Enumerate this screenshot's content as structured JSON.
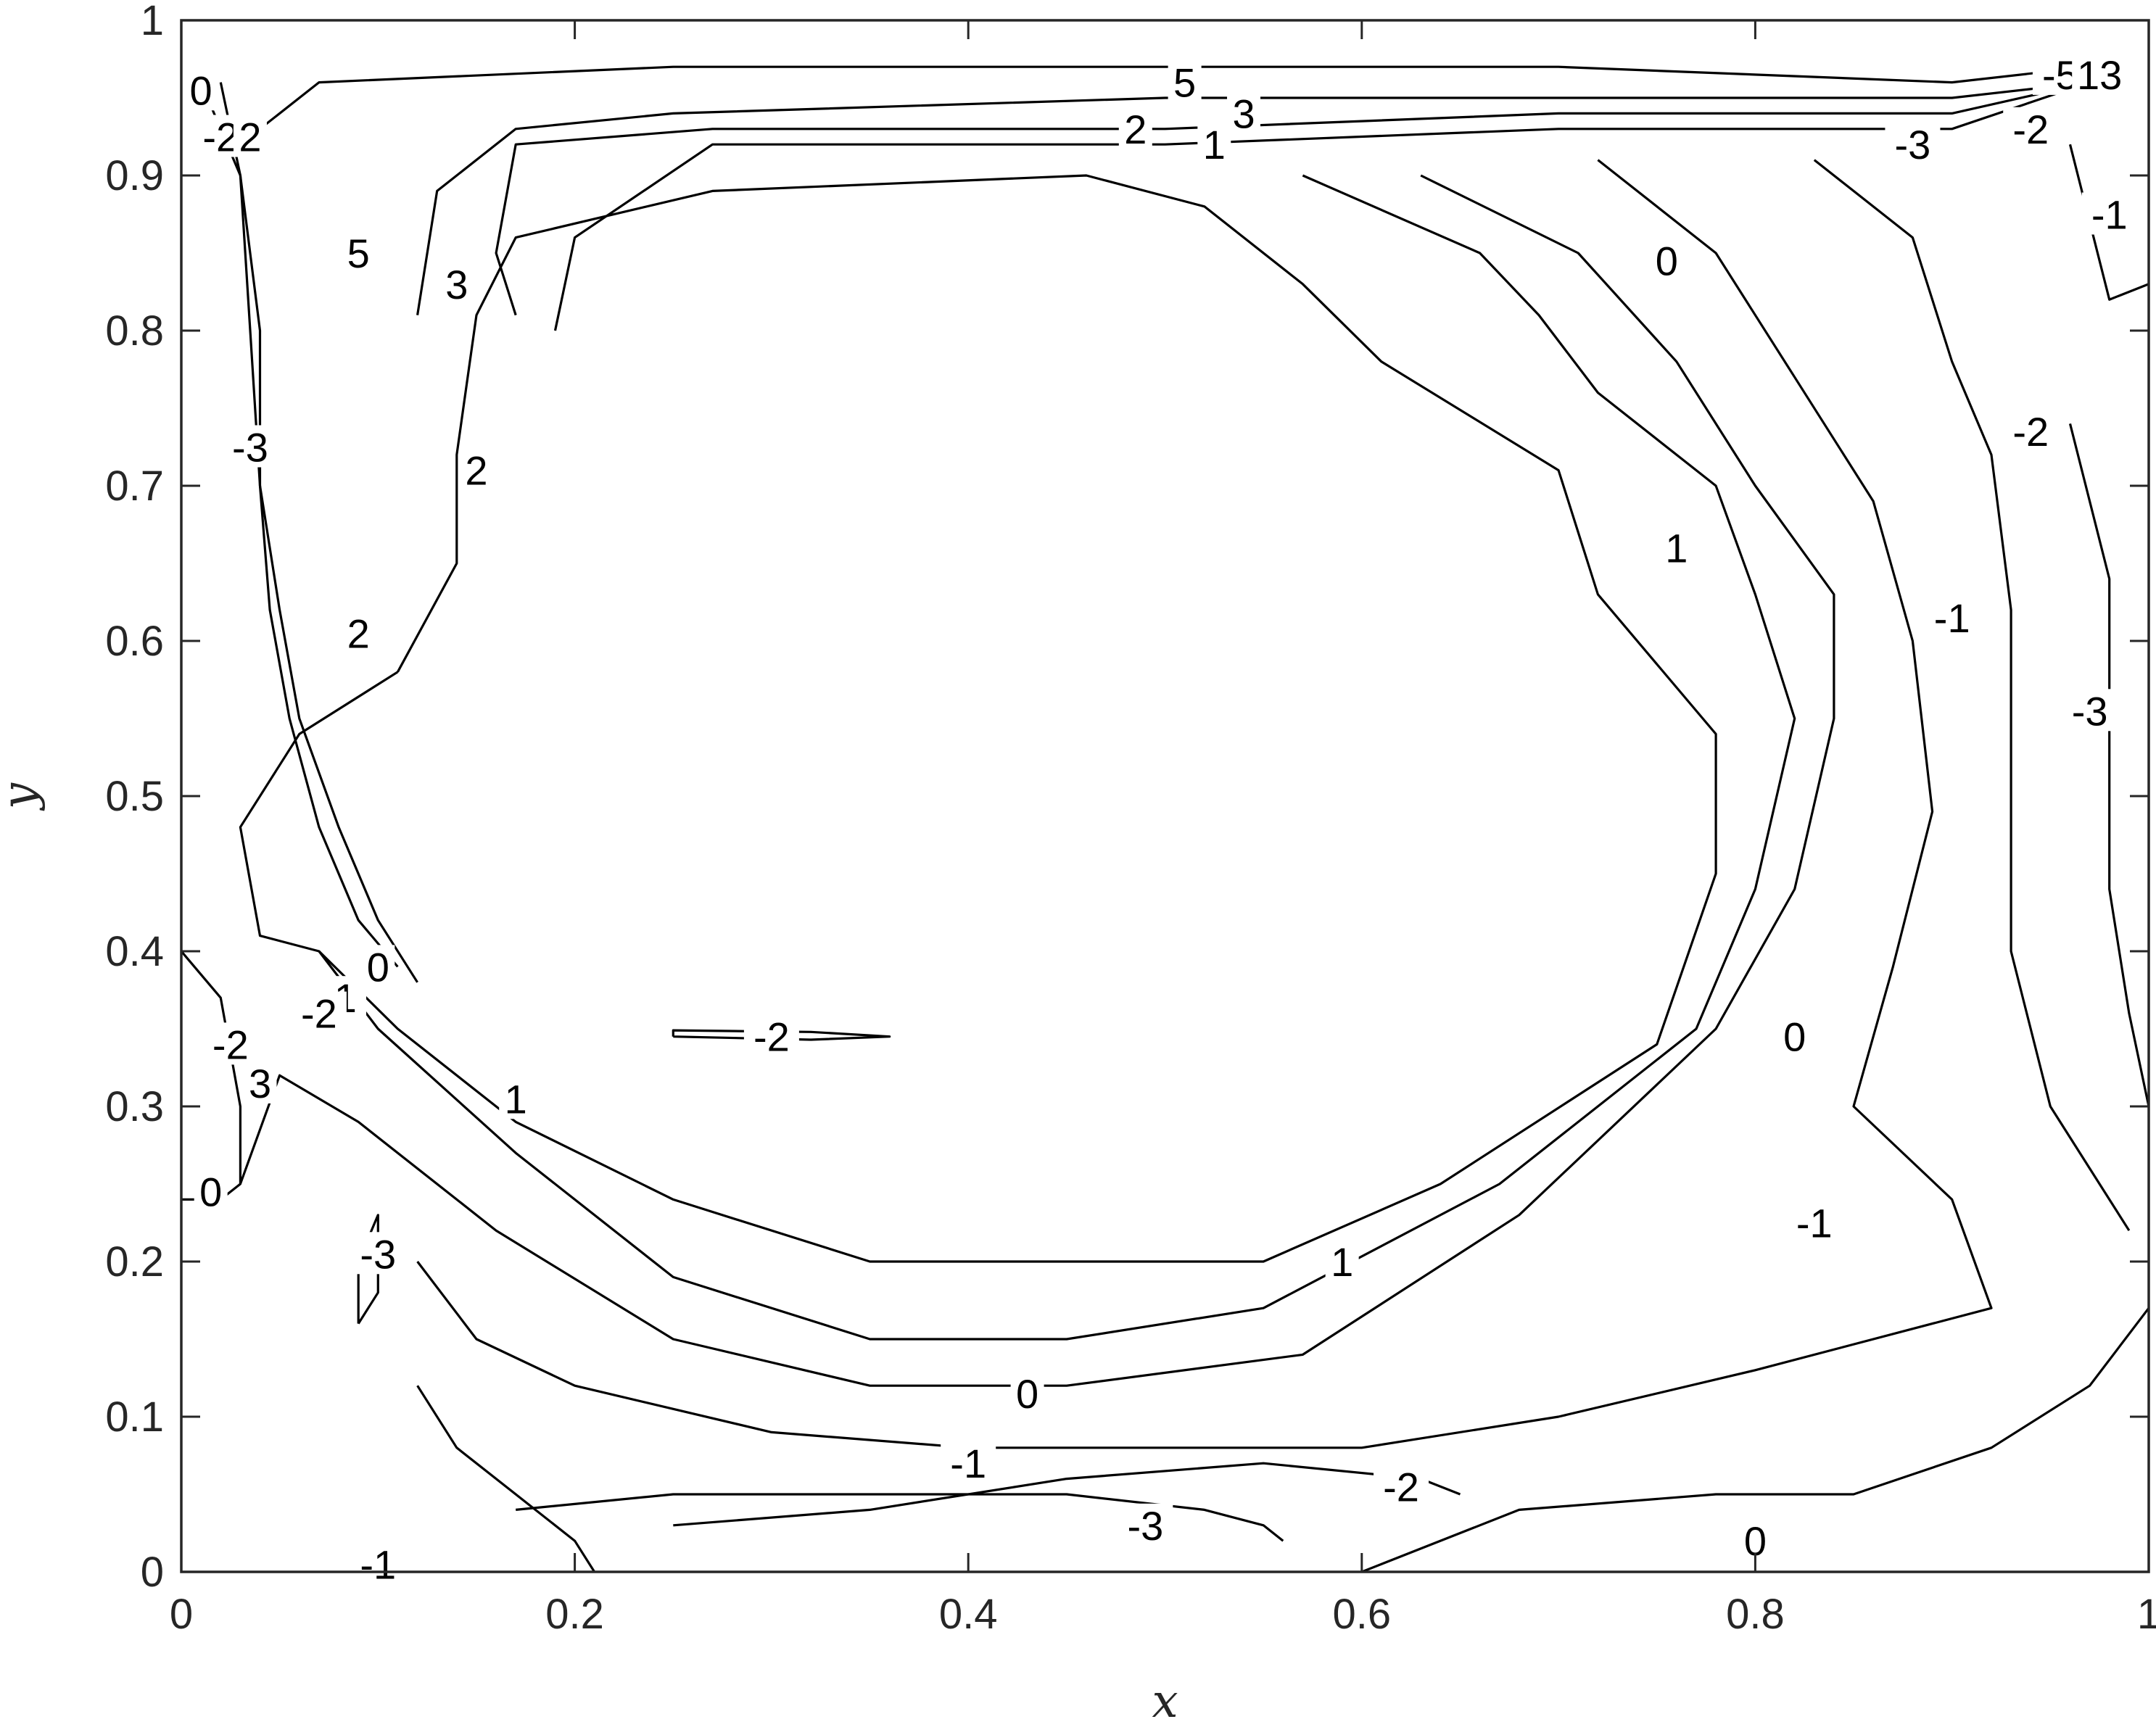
{
  "chart_data": {
    "type": "contour",
    "xlabel": "x",
    "ylabel": "y",
    "xlim": [
      0,
      1
    ],
    "ylim": [
      0,
      1
    ],
    "x_ticks": [
      "0",
      "0.2",
      "0.4",
      "0.6",
      "0.8",
      "1"
    ],
    "y_ticks": [
      "0",
      "0.1",
      "0.2",
      "0.3",
      "0.4",
      "0.5",
      "0.6",
      "0.7",
      "0.8",
      "0.9",
      "1"
    ],
    "grid": false,
    "line_color": "#000000",
    "contour_lines": [
      {
        "level": "5",
        "points": [
          [
            0.04,
            0.93
          ],
          [
            0.07,
            0.96
          ],
          [
            0.25,
            0.97
          ],
          [
            0.5,
            0.97
          ],
          [
            0.7,
            0.97
          ],
          [
            0.9,
            0.96
          ],
          [
            0.97,
            0.97
          ]
        ]
      },
      {
        "level": "3",
        "points": [
          [
            0.12,
            0.81
          ],
          [
            0.13,
            0.89
          ],
          [
            0.17,
            0.93
          ],
          [
            0.25,
            0.94
          ],
          [
            0.5,
            0.95
          ],
          [
            0.7,
            0.95
          ],
          [
            0.9,
            0.95
          ],
          [
            0.97,
            0.96
          ]
        ]
      },
      {
        "level": "2",
        "points": [
          [
            0.17,
            0.81
          ],
          [
            0.16,
            0.85
          ],
          [
            0.17,
            0.92
          ],
          [
            0.27,
            0.93
          ],
          [
            0.5,
            0.93
          ],
          [
            0.7,
            0.94
          ],
          [
            0.9,
            0.94
          ],
          [
            0.97,
            0.96
          ]
        ]
      },
      {
        "level": "1",
        "points": [
          [
            0.19,
            0.8
          ],
          [
            0.2,
            0.86
          ],
          [
            0.27,
            0.92
          ],
          [
            0.5,
            0.92
          ],
          [
            0.7,
            0.93
          ],
          [
            0.9,
            0.93
          ],
          [
            0.97,
            0.96
          ]
        ]
      },
      {
        "level": "2",
        "points": [
          [
            0.11,
            0.58
          ],
          [
            0.14,
            0.65
          ],
          [
            0.14,
            0.72
          ],
          [
            0.15,
            0.81
          ],
          [
            0.17,
            0.86
          ],
          [
            0.27,
            0.89
          ],
          [
            0.46,
            0.9
          ],
          [
            0.52,
            0.88
          ],
          [
            0.57,
            0.83
          ],
          [
            0.61,
            0.78
          ],
          [
            0.7,
            0.71
          ],
          [
            0.72,
            0.63
          ],
          [
            0.78,
            0.54
          ],
          [
            0.78,
            0.45
          ],
          [
            0.75,
            0.34
          ],
          [
            0.64,
            0.25
          ],
          [
            0.55,
            0.2
          ],
          [
            0.45,
            0.2
          ],
          [
            0.35,
            0.2
          ],
          [
            0.25,
            0.24
          ],
          [
            0.17,
            0.29
          ],
          [
            0.11,
            0.35
          ],
          [
            0.07,
            0.4
          ],
          [
            0.04,
            0.41
          ],
          [
            0.03,
            0.48
          ],
          [
            0.06,
            0.54
          ],
          [
            0.11,
            0.58
          ]
        ]
      },
      {
        "level": "1",
        "points": [
          [
            0.57,
            0.9
          ],
          [
            0.66,
            0.85
          ],
          [
            0.69,
            0.81
          ],
          [
            0.72,
            0.76
          ],
          [
            0.78,
            0.7
          ],
          [
            0.8,
            0.63
          ],
          [
            0.82,
            0.55
          ],
          [
            0.8,
            0.44
          ],
          [
            0.77,
            0.35
          ],
          [
            0.67,
            0.25
          ],
          [
            0.55,
            0.17
          ],
          [
            0.45,
            0.15
          ],
          [
            0.35,
            0.15
          ],
          [
            0.25,
            0.19
          ],
          [
            0.17,
            0.27
          ],
          [
            0.1,
            0.35
          ],
          [
            0.07,
            0.4
          ]
        ]
      },
      {
        "level": "0",
        "points": [
          [
            0.63,
            0.9
          ],
          [
            0.71,
            0.85
          ],
          [
            0.76,
            0.78
          ],
          [
            0.8,
            0.7
          ],
          [
            0.84,
            0.63
          ],
          [
            0.84,
            0.55
          ],
          [
            0.82,
            0.44
          ],
          [
            0.78,
            0.35
          ],
          [
            0.68,
            0.23
          ],
          [
            0.57,
            0.14
          ],
          [
            0.45,
            0.12
          ],
          [
            0.35,
            0.12
          ],
          [
            0.25,
            0.15
          ],
          [
            0.16,
            0.22
          ],
          [
            0.09,
            0.29
          ],
          [
            0.05,
            0.32
          ],
          [
            0.03,
            0.25
          ]
        ]
      },
      {
        "level": "-1",
        "points": [
          [
            0.72,
            0.91
          ],
          [
            0.78,
            0.85
          ],
          [
            0.82,
            0.77
          ],
          [
            0.86,
            0.69
          ],
          [
            0.88,
            0.6
          ],
          [
            0.89,
            0.49
          ],
          [
            0.87,
            0.39
          ],
          [
            0.85,
            0.3
          ],
          [
            0.9,
            0.24
          ],
          [
            0.92,
            0.17
          ],
          [
            0.8,
            0.13
          ],
          [
            0.7,
            0.1
          ],
          [
            0.6,
            0.08
          ],
          [
            0.5,
            0.08
          ],
          [
            0.4,
            0.08
          ],
          [
            0.3,
            0.09
          ],
          [
            0.2,
            0.12
          ],
          [
            0.15,
            0.15
          ],
          [
            0.12,
            0.2
          ]
        ]
      },
      {
        "level": "-2",
        "points": [
          [
            0.83,
            0.91
          ],
          [
            0.88,
            0.86
          ],
          [
            0.9,
            0.78
          ],
          [
            0.92,
            0.72
          ],
          [
            0.93,
            0.62
          ],
          [
            0.93,
            0.5
          ],
          [
            0.93,
            0.4
          ],
          [
            0.95,
            0.3
          ],
          [
            0.99,
            0.22
          ]
        ]
      },
      {
        "level": "-3",
        "points": [
          [
            0.96,
            0.74
          ],
          [
            0.98,
            0.64
          ],
          [
            0.98,
            0.54
          ],
          [
            0.98,
            0.44
          ],
          [
            0.99,
            0.36
          ],
          [
            1.0,
            0.3
          ]
        ]
      },
      {
        "level": "-3",
        "points": [
          [
            0.17,
            0.04
          ],
          [
            0.25,
            0.05
          ],
          [
            0.35,
            0.05
          ],
          [
            0.45,
            0.05
          ],
          [
            0.52,
            0.04
          ],
          [
            0.55,
            0.03
          ],
          [
            0.56,
            0.02
          ]
        ]
      },
      {
        "level": "-2",
        "points": [
          [
            0.25,
            0.03
          ],
          [
            0.35,
            0.04
          ],
          [
            0.45,
            0.06
          ],
          [
            0.55,
            0.07
          ],
          [
            0.63,
            0.06
          ],
          [
            0.65,
            0.05
          ]
        ]
      },
      {
        "level": "0",
        "points": [
          [
            0.6,
            0.0
          ],
          [
            0.68,
            0.04
          ],
          [
            0.78,
            0.05
          ],
          [
            0.85,
            0.05
          ],
          [
            0.92,
            0.08
          ],
          [
            0.97,
            0.12
          ],
          [
            1.0,
            0.17
          ]
        ]
      },
      {
        "level": "0",
        "points": [
          [
            0.0,
            0.4
          ],
          [
            0.02,
            0.37
          ],
          [
            0.03,
            0.3
          ],
          [
            0.03,
            0.25
          ],
          [
            0.02,
            0.24
          ],
          [
            0.0,
            0.24
          ]
        ]
      },
      {
        "level": "-3",
        "points": [
          [
            0.09,
            0.16
          ],
          [
            0.1,
            0.18
          ],
          [
            0.1,
            0.23
          ],
          [
            0.09,
            0.2
          ],
          [
            0.09,
            0.16
          ]
        ]
      },
      {
        "level": "-2",
        "points": [
          [
            0.25,
            0.345
          ],
          [
            0.32,
            0.343
          ],
          [
            0.36,
            0.345
          ],
          [
            0.32,
            0.348
          ],
          [
            0.25,
            0.349
          ],
          [
            0.25,
            0.345
          ]
        ]
      },
      {
        "level": "-2",
        "points": [
          [
            0.02,
            0.96
          ],
          [
            0.03,
            0.9
          ],
          [
            0.04,
            0.8
          ],
          [
            0.04,
            0.7
          ],
          [
            0.05,
            0.62
          ],
          [
            0.06,
            0.55
          ],
          [
            0.08,
            0.48
          ],
          [
            0.1,
            0.42
          ],
          [
            0.12,
            0.38
          ]
        ]
      },
      {
        "level": "0",
        "points": [
          [
            0.01,
            0.96
          ],
          [
            0.03,
            0.9
          ],
          [
            0.035,
            0.8
          ],
          [
            0.04,
            0.7
          ],
          [
            0.045,
            0.62
          ],
          [
            0.055,
            0.55
          ],
          [
            0.07,
            0.48
          ],
          [
            0.09,
            0.42
          ],
          [
            0.11,
            0.39
          ]
        ]
      },
      {
        "level": "1",
        "points": [
          [
            0.12,
            0.12
          ],
          [
            0.14,
            0.08
          ],
          [
            0.17,
            0.05
          ],
          [
            0.2,
            0.02
          ],
          [
            0.21,
            0.0
          ]
        ]
      },
      {
        "level": "1",
        "points": [
          [
            0.96,
            0.92
          ],
          [
            0.97,
            0.87
          ],
          [
            0.98,
            0.82
          ],
          [
            1.0,
            0.83
          ]
        ]
      }
    ],
    "contour_labels": [
      {
        "text": "5",
        "x": 0.09,
        "y": 0.85
      },
      {
        "text": "3",
        "x": 0.14,
        "y": 0.83
      },
      {
        "text": "2",
        "x": 0.15,
        "y": 0.71
      },
      {
        "text": "2",
        "x": 0.09,
        "y": 0.605
      },
      {
        "text": "-3",
        "x": 0.035,
        "y": 0.725
      },
      {
        "text": "5",
        "x": 0.51,
        "y": 0.96
      },
      {
        "text": "3",
        "x": 0.54,
        "y": 0.94
      },
      {
        "text": "2",
        "x": 0.485,
        "y": 0.93
      },
      {
        "text": "1",
        "x": 0.525,
        "y": 0.92
      },
      {
        "text": "0",
        "x": 0.755,
        "y": 0.845
      },
      {
        "text": "1",
        "x": 0.76,
        "y": 0.66
      },
      {
        "text": "-2",
        "x": 0.94,
        "y": 0.735
      },
      {
        "text": "-1",
        "x": 0.9,
        "y": 0.615
      },
      {
        "text": "-3",
        "x": 0.97,
        "y": 0.555
      },
      {
        "text": "-1",
        "x": 0.98,
        "y": 0.875
      },
      {
        "text": "-2",
        "x": 0.94,
        "y": 0.93
      },
      {
        "text": "-3",
        "x": 0.88,
        "y": 0.92
      },
      {
        "text": "-2",
        "x": 0.3,
        "y": 0.345
      },
      {
        "text": "1",
        "x": 0.17,
        "y": 0.305
      },
      {
        "text": "1",
        "x": 0.59,
        "y": 0.2
      },
      {
        "text": "0",
        "x": 0.43,
        "y": 0.115
      },
      {
        "text": "-1",
        "x": 0.4,
        "y": 0.07
      },
      {
        "text": "-2",
        "x": 0.62,
        "y": 0.055
      },
      {
        "text": "-3",
        "x": 0.49,
        "y": 0.03
      },
      {
        "text": "0",
        "x": 0.82,
        "y": 0.345
      },
      {
        "text": "-1",
        "x": 0.83,
        "y": 0.225
      },
      {
        "text": "0",
        "x": 0.8,
        "y": 0.02
      },
      {
        "text": "-1",
        "x": 0.1,
        "y": 0.005
      },
      {
        "text": "-3",
        "x": 0.1,
        "y": 0.205
      },
      {
        "text": "-2",
        "x": 0.025,
        "y": 0.34
      },
      {
        "text": "3",
        "x": 0.04,
        "y": 0.315
      },
      {
        "text": "0",
        "x": 0.015,
        "y": 0.245
      },
      {
        "text": "0",
        "x": 0.1,
        "y": 0.39
      },
      {
        "text": "-1",
        "x": 0.08,
        "y": 0.37
      },
      {
        "text": "-2",
        "x": 0.07,
        "y": 0.36
      },
      {
        "text": "0",
        "x": 0.01,
        "y": 0.955
      },
      {
        "text": "-2",
        "x": 0.02,
        "y": 0.925
      },
      {
        "text": "2",
        "x": 0.035,
        "y": 0.925
      },
      {
        "text": "-5",
        "x": 0.955,
        "y": 0.965
      },
      {
        "text": "13",
        "x": 0.975,
        "y": 0.965
      }
    ]
  }
}
